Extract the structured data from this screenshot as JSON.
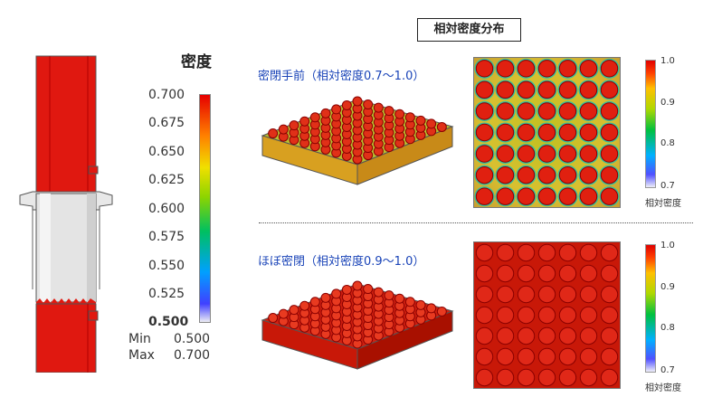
{
  "left_panel": {
    "legend_title": "密度",
    "ticks": [
      "0.700",
      "0.675",
      "0.650",
      "0.625",
      "0.600",
      "0.575",
      "0.550",
      "0.525",
      "0.500"
    ],
    "min_label": "Min",
    "min_value": "0.500",
    "max_label": "Max",
    "max_value": "0.700"
  },
  "right_panel": {
    "title": "相対密度分布",
    "case1_caption": "密閉手前（相対密度0.7～1.0）",
    "case2_caption": "ほぼ密閉（相対密度0.9～1.0）",
    "scale1_ticks": [
      "1.0",
      "0.9",
      "0.8",
      "0.7"
    ],
    "scale2_ticks": [
      "1.0",
      "0.9",
      "0.8",
      "0.7"
    ],
    "scale_label": "相対密度"
  },
  "colors": {
    "high": "#e60000",
    "mid": "#00c060",
    "low": "#4040ff",
    "caption": "#1a44b8"
  }
}
